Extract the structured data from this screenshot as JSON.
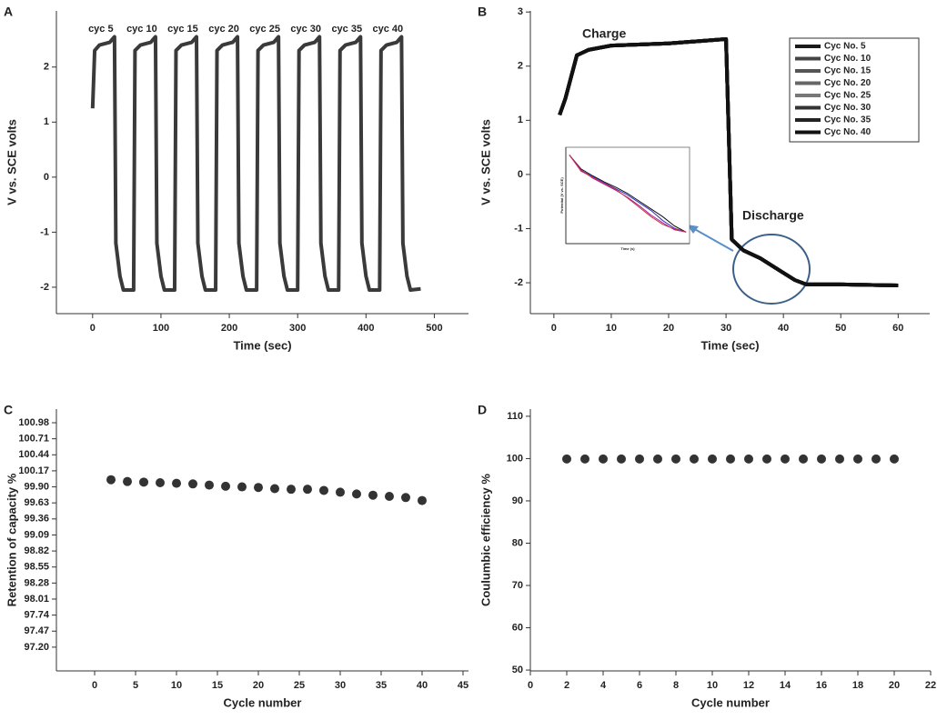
{
  "chart_data": [
    {
      "type": "line",
      "label": "A",
      "x_label": "Time (sec)",
      "y_label": "V vs. SCE volts",
      "color": "#3a3a3a",
      "annotations": [
        "cyc 5",
        "cyc 10",
        "cyc 15",
        "cyc 20",
        "cyc 25",
        "cyc 30",
        "cyc 35",
        "cyc 40"
      ],
      "x": [
        0,
        3,
        10,
        25,
        32,
        34,
        40,
        45,
        60,
        62,
        70,
        85,
        92,
        94,
        100,
        105,
        120,
        122,
        130,
        145,
        152,
        154,
        160,
        165,
        180,
        182,
        190,
        205,
        212,
        214,
        220,
        225,
        240,
        242,
        250,
        265,
        272,
        274,
        280,
        285,
        300,
        302,
        310,
        325,
        332,
        334,
        340,
        345,
        360,
        362,
        370,
        385,
        392,
        394,
        400,
        405,
        420,
        422,
        430,
        445,
        452,
        454,
        460,
        465,
        480
      ],
      "values": [
        1.25,
        2.3,
        2.4,
        2.45,
        2.55,
        -1.2,
        -1.8,
        -2.05,
        -2.05,
        2.3,
        2.4,
        2.45,
        2.55,
        -1.2,
        -1.8,
        -2.05,
        -2.05,
        2.3,
        2.4,
        2.45,
        2.55,
        -1.2,
        -1.8,
        -2.05,
        -2.05,
        2.3,
        2.4,
        2.45,
        2.55,
        -1.2,
        -1.8,
        -2.05,
        -2.05,
        2.3,
        2.4,
        2.45,
        2.55,
        -1.2,
        -1.8,
        -2.05,
        -2.05,
        2.3,
        2.4,
        2.45,
        2.55,
        -1.2,
        -1.8,
        -2.05,
        -2.05,
        2.3,
        2.4,
        2.45,
        2.55,
        -1.2,
        -1.8,
        -2.05,
        -2.05,
        2.3,
        2.4,
        2.45,
        2.55,
        -1.2,
        -1.8,
        -2.05,
        -2.03
      ],
      "xlim": [
        -53,
        550
      ],
      "xticks": [
        0,
        100,
        200,
        300,
        400,
        500
      ],
      "ylim": [
        -2.48,
        3.02
      ],
      "yticks": [
        -2,
        -1,
        0,
        1,
        2
      ]
    },
    {
      "type": "line",
      "label": "B",
      "x_label": "Time (sec)",
      "y_label": "V vs. SCE volts",
      "legend": "upper right",
      "annotations": [
        "Charge",
        "Discharge"
      ],
      "x": [
        1,
        2,
        4,
        6,
        10,
        20,
        30,
        31,
        33,
        36,
        39,
        42,
        44,
        50,
        60
      ],
      "series": [
        {
          "name": "Cyc No. 5",
          "color": "#1a1a1a",
          "values": [
            1.1,
            1.4,
            2.2,
            2.3,
            2.38,
            2.42,
            2.5,
            -1.2,
            -1.4,
            -1.55,
            -1.75,
            -1.95,
            -2.03,
            -2.03,
            -2.05
          ]
        },
        {
          "name": "Cyc No. 10",
          "color": "#444444",
          "values": [
            1.1,
            1.4,
            2.2,
            2.3,
            2.38,
            2.42,
            2.5,
            -1.2,
            -1.4,
            -1.55,
            -1.75,
            -1.95,
            -2.03,
            -2.03,
            -2.05
          ]
        },
        {
          "name": "Cyc No. 15",
          "color": "#555555",
          "values": [
            1.1,
            1.4,
            2.2,
            2.3,
            2.38,
            2.42,
            2.5,
            -1.2,
            -1.4,
            -1.55,
            -1.75,
            -1.95,
            -2.03,
            -2.03,
            -2.05
          ]
        },
        {
          "name": "Cyc No. 20",
          "color": "#666666",
          "values": [
            1.1,
            1.4,
            2.2,
            2.3,
            2.38,
            2.42,
            2.5,
            -1.2,
            -1.4,
            -1.55,
            -1.75,
            -1.95,
            -2.03,
            -2.03,
            -2.05
          ]
        },
        {
          "name": "Cyc No. 25",
          "color": "#777777",
          "values": [
            1.1,
            1.4,
            2.2,
            2.3,
            2.38,
            2.42,
            2.5,
            -1.2,
            -1.4,
            -1.55,
            -1.75,
            -1.95,
            -2.03,
            -2.03,
            -2.05
          ]
        },
        {
          "name": "Cyc No. 30",
          "color": "#333333",
          "values": [
            1.1,
            1.4,
            2.2,
            2.3,
            2.38,
            2.42,
            2.5,
            -1.2,
            -1.4,
            -1.55,
            -1.75,
            -1.95,
            -2.03,
            -2.03,
            -2.05
          ]
        },
        {
          "name": "Cyc No. 35",
          "color": "#222222",
          "values": [
            1.1,
            1.4,
            2.2,
            2.3,
            2.38,
            2.42,
            2.5,
            -1.2,
            -1.4,
            -1.55,
            -1.75,
            -1.95,
            -2.03,
            -2.03,
            -2.05
          ]
        },
        {
          "name": "Cyc No. 40",
          "color": "#111111",
          "values": [
            1.1,
            1.4,
            2.2,
            2.3,
            2.38,
            2.42,
            2.5,
            -1.2,
            -1.4,
            -1.55,
            -1.75,
            -1.95,
            -2.03,
            -2.03,
            -2.05
          ]
        }
      ],
      "xlim": [
        -4.1,
        65.5
      ],
      "xticks": [
        0,
        10,
        20,
        30,
        40,
        50,
        60
      ],
      "ylim": [
        -2.57,
        3.02
      ],
      "yticks": [
        -2,
        -1,
        0,
        1,
        2,
        3
      ]
    },
    {
      "type": "scatter",
      "label": "C",
      "x_label": "Cycle number",
      "y_label": "Retention of capacity %",
      "color": "#333333",
      "x": [
        2,
        4,
        6,
        8,
        10,
        12,
        14,
        16,
        18,
        20,
        22,
        24,
        26,
        28,
        30,
        32,
        34,
        36,
        38,
        40
      ],
      "values": [
        100.02,
        99.99,
        99.98,
        99.97,
        99.96,
        99.95,
        99.93,
        99.91,
        99.9,
        99.89,
        99.87,
        99.86,
        99.86,
        99.84,
        99.81,
        99.78,
        99.76,
        99.74,
        99.72,
        99.67
      ],
      "xlim": [
        -4.67,
        45.67
      ],
      "xticks": [
        0,
        5,
        10,
        15,
        20,
        25,
        30,
        35,
        40,
        45
      ],
      "ylim": [
        96.8,
        101.21
      ],
      "yticks": [
        {
          "value": 97.2,
          "label": "97.20"
        },
        97.47,
        97.74,
        98.01,
        98.28,
        98.55,
        98.82,
        99.09,
        99.36,
        99.63,
        {
          "value": 99.9,
          "label": "99.90"
        },
        100.17,
        100.44,
        100.71,
        100.98
      ]
    },
    {
      "type": "scatter",
      "label": "D",
      "x_label": "Cycle number",
      "y_label": "Coulumbic efficiency %",
      "color": "#333333",
      "x": [
        2,
        3,
        4,
        5,
        6,
        7,
        8,
        9,
        10,
        11,
        12,
        13,
        14,
        15,
        16,
        17,
        18,
        19,
        20
      ],
      "values": [
        99.9,
        99.9,
        99.9,
        99.9,
        99.9,
        99.9,
        99.9,
        99.9,
        99.9,
        99.9,
        99.9,
        99.9,
        99.9,
        99.9,
        99.9,
        99.9,
        99.9,
        99.9,
        99.9
      ],
      "xlim": [
        0,
        22
      ],
      "xticks": [
        0,
        2,
        4,
        6,
        8,
        10,
        12,
        14,
        16,
        18,
        20,
        22
      ],
      "ylim": [
        49.8,
        111.7
      ],
      "yticks": [
        50,
        60,
        70,
        80,
        90,
        100,
        110
      ]
    },
    {
      "type": "line",
      "x_label": "Time (s)",
      "y_label": "Potential (V vs. SCE)",
      "x": [
        0,
        1,
        2,
        3,
        4,
        5,
        6,
        7,
        8,
        9,
        10
      ],
      "series": [
        {
          "color": "#111111",
          "values": [
            0,
            -0.18,
            -0.27,
            -0.35,
            -0.42,
            -0.5,
            -0.6,
            -0.7,
            -0.8,
            -0.92,
            -1.0
          ]
        },
        {
          "color": "#3030c0",
          "values": [
            0,
            -0.2,
            -0.28,
            -0.36,
            -0.44,
            -0.52,
            -0.62,
            -0.72,
            -0.85,
            -0.95,
            -1.0
          ]
        },
        {
          "color": "#a020a0",
          "values": [
            0,
            -0.19,
            -0.3,
            -0.38,
            -0.46,
            -0.55,
            -0.66,
            -0.78,
            -0.88,
            -0.97,
            -1.0
          ]
        },
        {
          "color": "#d03040",
          "values": [
            0,
            -0.21,
            -0.29,
            -0.37,
            -0.45,
            -0.56,
            -0.68,
            -0.8,
            -0.9,
            -0.96,
            -1.0
          ]
        }
      ],
      "xlim": [
        -0.3,
        10.3
      ],
      "ylim": [
        -1.15,
        0.1
      ]
    }
  ]
}
